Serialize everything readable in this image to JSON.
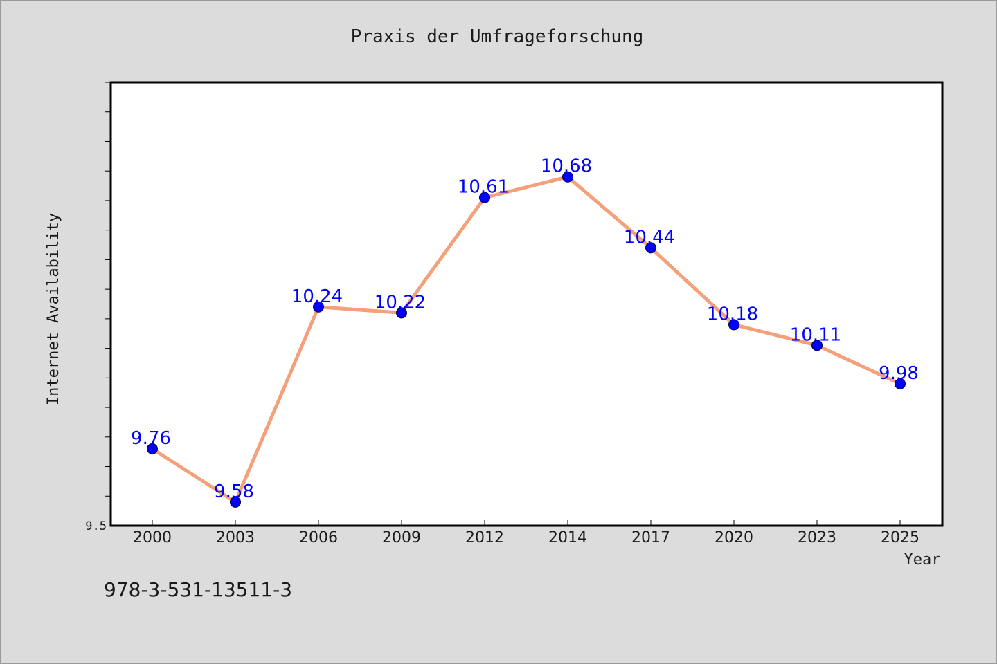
{
  "colors": {
    "background": "#dcdcdc",
    "plot_background": "#ffffff",
    "line": "#f4a07a",
    "marker": "#0000ff",
    "data_label": "#0000ff"
  },
  "footer": {
    "isbn": "978-3-531-13511-3"
  },
  "chart_data": {
    "type": "line",
    "title": "Praxis der Umfrageforschung",
    "xlabel": "Year",
    "ylabel": "Internet Availability",
    "categories": [
      "2000",
      "2003",
      "2006",
      "2009",
      "2012",
      "2014",
      "2017",
      "2020",
      "2023",
      "2025"
    ],
    "series": [
      {
        "values": [
          9.76,
          9.58,
          10.24,
          10.22,
          10.61,
          10.68,
          10.44,
          10.18,
          10.11,
          9.98
        ]
      }
    ],
    "data_labels": [
      "9.76",
      "9.58",
      "10.24",
      "10.22",
      "10.61",
      "10.68",
      "10.44",
      "10.18",
      "10.11",
      "9.98"
    ],
    "ylim": [
      9.5,
      11.0
    ],
    "y_tick_labels": [
      "9.5"
    ],
    "y_minor_tick_step": 0.1,
    "grid": false,
    "legend": "none",
    "marker": "circle"
  }
}
